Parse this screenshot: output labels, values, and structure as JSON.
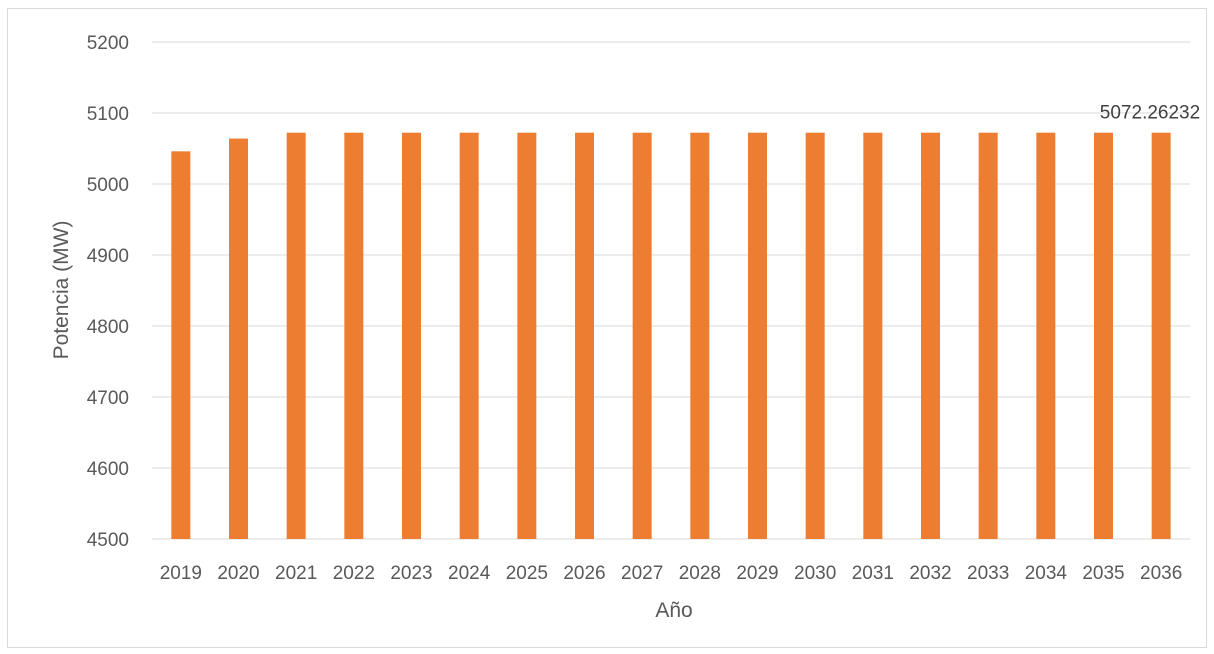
{
  "chart_data": {
    "type": "bar",
    "title": "",
    "xlabel": "Año",
    "ylabel": "Potencia (MW)",
    "ylim": [
      4500,
      5200
    ],
    "yticks": [
      4500,
      4600,
      4700,
      4800,
      4900,
      5000,
      5100,
      5200
    ],
    "grid": true,
    "legend": "none",
    "color": "#ED7D31",
    "categories": [
      "2019",
      "2020",
      "2021",
      "2022",
      "2023",
      "2024",
      "2025",
      "2026",
      "2027",
      "2028",
      "2029",
      "2030",
      "2031",
      "2032",
      "2033",
      "2034",
      "2035",
      "2036"
    ],
    "values": [
      5046,
      5064,
      5072.26232,
      5072.26232,
      5072.26232,
      5072.26232,
      5072.26232,
      5072.26232,
      5072.26232,
      5072.26232,
      5072.26232,
      5072.26232,
      5072.26232,
      5072.26232,
      5072.26232,
      5072.26232,
      5072.26232,
      5072.26232
    ],
    "data_labels": [
      {
        "category": "2036",
        "text": "5072.26232"
      }
    ]
  }
}
